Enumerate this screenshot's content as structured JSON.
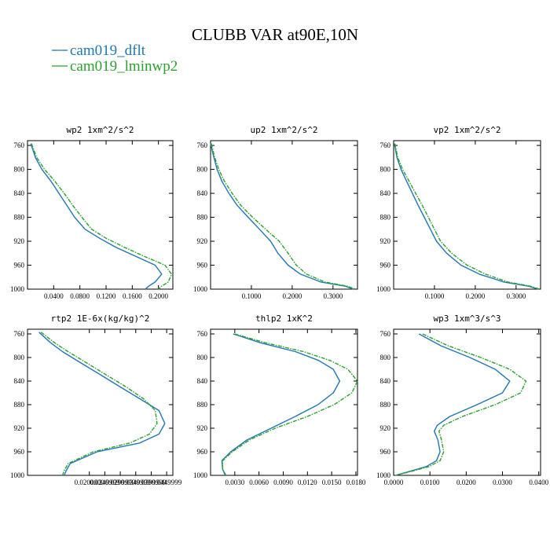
{
  "figure": {
    "title": "CLUBB VAR at90E,10N",
    "legend_placement": "top-left",
    "legend": [
      {
        "label": "cam019_dflt",
        "color": "#1f77b4"
      },
      {
        "label": "cam019_lminwp2",
        "color": "#2ca02c"
      }
    ]
  },
  "chart_data": [
    {
      "type": "line",
      "title": "wp2  1xm^2/s^2",
      "xlim": [
        0.0,
        0.222
      ],
      "ylim": [
        1000,
        752
      ],
      "y_inverted": true,
      "xticks": [
        0.04,
        0.08,
        0.12,
        0.16,
        0.2
      ],
      "xtick_labels": [
        "0.0400",
        "0.0800",
        "0.1200",
        "0.1600",
        "0.2000"
      ],
      "yticks": [
        760,
        800,
        840,
        880,
        920,
        960,
        1000
      ],
      "series": [
        {
          "name": "cam019_dflt",
          "color": "#1f77b4",
          "x": [
            0.005,
            0.012,
            0.022,
            0.036,
            0.048,
            0.06,
            0.072,
            0.088,
            0.11,
            0.135,
            0.165,
            0.195,
            0.205,
            0.195,
            0.185,
            0.18
          ],
          "y": [
            757,
            780,
            800,
            820,
            840,
            860,
            880,
            900,
            915,
            930,
            945,
            960,
            975,
            988,
            995,
            1000
          ]
        },
        {
          "name": "cam019_lminwp2",
          "color": "#2ca02c",
          "x": [
            0.006,
            0.014,
            0.026,
            0.042,
            0.056,
            0.069,
            0.083,
            0.098,
            0.12,
            0.148,
            0.178,
            0.21,
            0.22,
            0.215,
            0.205,
            0.2
          ],
          "y": [
            757,
            780,
            800,
            820,
            840,
            860,
            880,
            900,
            915,
            930,
            945,
            960,
            975,
            988,
            995,
            1000
          ]
        }
      ]
    },
    {
      "type": "line",
      "title": "up2  1xm^2/s^2",
      "xlim": [
        0.0,
        0.36
      ],
      "ylim": [
        1000,
        752
      ],
      "y_inverted": true,
      "xticks": [
        0.1,
        0.2,
        0.3
      ],
      "xtick_labels": [
        "0.1000",
        "0.2000",
        "0.3000"
      ],
      "yticks": [
        760,
        800,
        840,
        880,
        920,
        960,
        1000
      ],
      "series": [
        {
          "name": "cam019_dflt",
          "color": "#1f77b4",
          "x": [
            0.0,
            0.008,
            0.016,
            0.028,
            0.045,
            0.065,
            0.092,
            0.12,
            0.147,
            0.165,
            0.19,
            0.22,
            0.27,
            0.33,
            0.35
          ],
          "y": [
            757,
            780,
            800,
            820,
            840,
            860,
            880,
            900,
            920,
            940,
            960,
            975,
            988,
            995,
            1000
          ]
        },
        {
          "name": "cam019_lminwp2",
          "color": "#2ca02c",
          "x": [
            0.002,
            0.01,
            0.02,
            0.034,
            0.053,
            0.074,
            0.103,
            0.135,
            0.168,
            0.19,
            0.21,
            0.235,
            0.28,
            0.335,
            0.355
          ],
          "y": [
            757,
            780,
            800,
            820,
            840,
            860,
            880,
            900,
            920,
            940,
            960,
            975,
            988,
            995,
            1000
          ]
        }
      ]
    },
    {
      "type": "line",
      "title": "vp2  1xm^2/s^2",
      "xlim": [
        0.0,
        0.36
      ],
      "ylim": [
        1000,
        752
      ],
      "y_inverted": true,
      "xticks": [
        0.1,
        0.2,
        0.3
      ],
      "xtick_labels": [
        "0.1000",
        "0.2000",
        "0.3000"
      ],
      "yticks": [
        760,
        800,
        840,
        880,
        920,
        960,
        1000
      ],
      "series": [
        {
          "name": "cam019_dflt",
          "color": "#1f77b4",
          "x": [
            0.002,
            0.008,
            0.018,
            0.032,
            0.046,
            0.06,
            0.075,
            0.09,
            0.105,
            0.13,
            0.165,
            0.21,
            0.27,
            0.33,
            0.355
          ],
          "y": [
            757,
            780,
            800,
            820,
            840,
            860,
            880,
            900,
            920,
            940,
            960,
            975,
            988,
            995,
            1000
          ]
        },
        {
          "name": "cam019_lminwp2",
          "color": "#2ca02c",
          "x": [
            0.003,
            0.01,
            0.022,
            0.038,
            0.054,
            0.07,
            0.085,
            0.1,
            0.115,
            0.142,
            0.18,
            0.225,
            0.28,
            0.335,
            0.358
          ],
          "y": [
            757,
            780,
            800,
            820,
            840,
            860,
            880,
            900,
            920,
            940,
            960,
            975,
            988,
            995,
            1000
          ]
        }
      ]
    },
    {
      "type": "line",
      "title": "rtp2  1E-6x(kg/kg)^2",
      "xlim": [
        0.0,
        0.047
      ],
      "ylim": [
        1000,
        752
      ],
      "y_inverted": true,
      "xticks": [
        0.02,
        0.025,
        0.03,
        0.035,
        0.04,
        0.045
      ],
      "xtick_labels": [
        "0.0200000",
        "0.0249999",
        "0.0299999",
        "0.0349999",
        "0.0399999",
        "0.0449999"
      ],
      "yticks": [
        760,
        800,
        840,
        880,
        920,
        960,
        1000
      ],
      "series": [
        {
          "name": "cam019_dflt",
          "color": "#1f77b4",
          "x": [
            0.0037,
            0.0075,
            0.0113,
            0.0175,
            0.0238,
            0.03,
            0.0363,
            0.0425,
            0.0444,
            0.0425,
            0.0363,
            0.0225,
            0.0138,
            0.0125,
            0.0119
          ],
          "y": [
            757,
            775,
            790,
            810,
            830,
            850,
            870,
            890,
            912,
            930,
            945,
            960,
            980,
            992,
            1000
          ]
        },
        {
          "name": "cam019_lminwp2",
          "color": "#2ca02c",
          "x": [
            0.0044,
            0.0088,
            0.0131,
            0.0194,
            0.0256,
            0.0319,
            0.0375,
            0.0413,
            0.0419,
            0.0394,
            0.0331,
            0.0213,
            0.0131,
            0.0119,
            0.0113
          ],
          "y": [
            757,
            775,
            790,
            810,
            830,
            850,
            870,
            890,
            912,
            930,
            945,
            960,
            980,
            992,
            1000
          ]
        }
      ]
    },
    {
      "type": "line",
      "title": "thlp2  1xK^2",
      "xlim": [
        0.0,
        0.0182
      ],
      "ylim": [
        1000,
        752
      ],
      "y_inverted": true,
      "xticks": [
        0.003,
        0.006,
        0.009,
        0.012,
        0.015,
        0.018
      ],
      "xtick_labels": [
        "0.0030",
        "0.0060",
        "0.0090",
        "0.0120",
        "0.0150",
        "0.0180"
      ],
      "yticks": [
        760,
        800,
        840,
        880,
        920,
        960,
        1000
      ],
      "series": [
        {
          "name": "cam019_dflt",
          "color": "#1f77b4",
          "x": [
            0.0028,
            0.0062,
            0.0105,
            0.0134,
            0.0152,
            0.016,
            0.0152,
            0.0133,
            0.0105,
            0.0075,
            0.0045,
            0.0025,
            0.0014,
            0.0015,
            0.0019
          ],
          "y": [
            760,
            775,
            790,
            805,
            820,
            840,
            860,
            880,
            900,
            920,
            940,
            960,
            975,
            990,
            1000
          ]
        },
        {
          "name": "cam019_lminwp2",
          "color": "#2ca02c",
          "x": [
            0.003,
            0.0068,
            0.0115,
            0.0148,
            0.017,
            0.0182,
            0.0175,
            0.0153,
            0.012,
            0.008,
            0.0048,
            0.0027,
            0.0015,
            0.0015,
            0.0018
          ],
          "y": [
            760,
            775,
            790,
            805,
            820,
            840,
            860,
            880,
            900,
            920,
            940,
            960,
            975,
            990,
            1000
          ]
        }
      ]
    },
    {
      "type": "line",
      "title": "wp3  1xm^3/s^3",
      "xlim": [
        0.0,
        0.0405
      ],
      "ylim": [
        1000,
        752
      ],
      "y_inverted": true,
      "xticks": [
        0.0,
        0.01,
        0.02,
        0.03,
        0.04
      ],
      "xtick_labels": [
        "0.0000",
        "0.0100",
        "0.0200",
        "0.0300",
        "0.0400"
      ],
      "yticks": [
        760,
        800,
        840,
        880,
        920,
        960,
        1000
      ],
      "series": [
        {
          "name": "cam019_dflt",
          "color": "#1f77b4",
          "x": [
            0.007,
            0.013,
            0.021,
            0.028,
            0.032,
            0.03,
            0.023,
            0.0155,
            0.012,
            0.0112,
            0.0122,
            0.0128,
            0.0118,
            0.009,
            0.0045,
            0.0005
          ],
          "y": [
            760,
            780,
            800,
            820,
            840,
            860,
            880,
            900,
            915,
            925,
            940,
            960,
            975,
            985,
            993,
            1000
          ]
        },
        {
          "name": "cam019_lminwp2",
          "color": "#2ca02c",
          "x": [
            0.008,
            0.015,
            0.024,
            0.032,
            0.0365,
            0.035,
            0.028,
            0.019,
            0.0138,
            0.0125,
            0.0132,
            0.0138,
            0.0128,
            0.0098,
            0.005,
            0.0005
          ],
          "y": [
            760,
            780,
            800,
            820,
            840,
            860,
            880,
            900,
            915,
            925,
            940,
            960,
            975,
            985,
            993,
            1000
          ]
        }
      ]
    }
  ]
}
